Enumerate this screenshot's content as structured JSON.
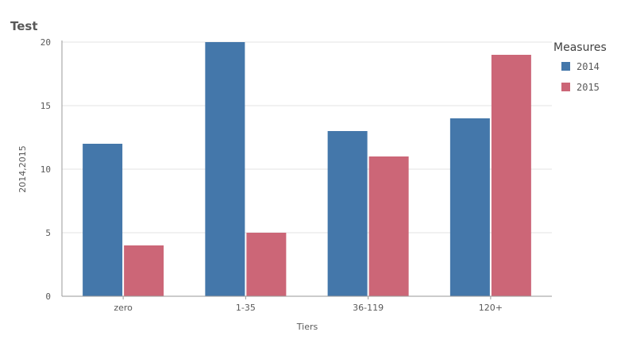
{
  "chart_data": {
    "type": "bar",
    "title": "Test",
    "xlabel": "Tiers",
    "ylabel": "2014,2015",
    "categories": [
      "zero",
      "1-35",
      "36-119",
      "120+"
    ],
    "series": [
      {
        "name": "2014",
        "values": [
          12,
          20,
          13,
          14
        ],
        "color": "#4477aa"
      },
      {
        "name": "2015",
        "values": [
          4,
          5,
          11,
          19
        ],
        "color": "#cc6677"
      }
    ],
    "ylim": [
      0,
      20
    ],
    "yticks": [
      "0",
      "5",
      "10",
      "15",
      "20"
    ],
    "grid": true,
    "legend": {
      "title": "Measures",
      "placement": "top-right"
    }
  }
}
